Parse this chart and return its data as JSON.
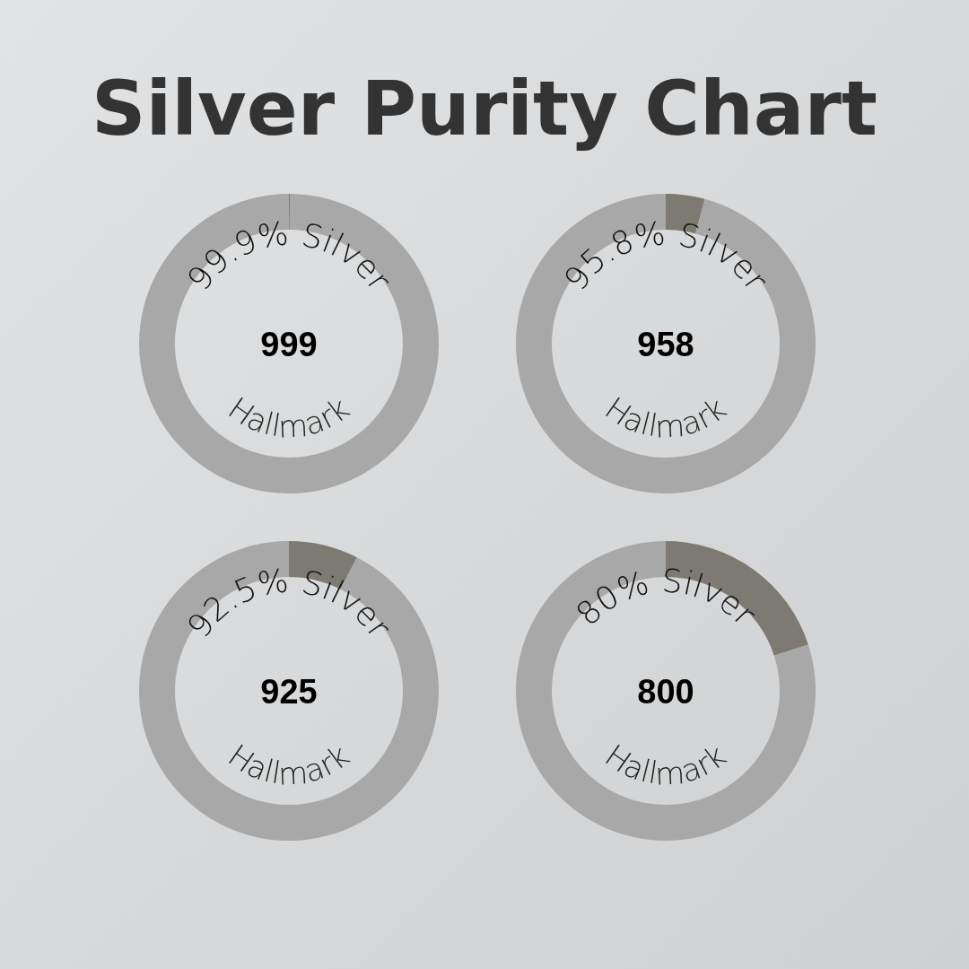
{
  "chart_data": [
    {
      "type": "donut",
      "title": "Silver Purity Chart",
      "categories": [
        null,
        null
      ],
      "values": [
        0.1,
        99.9
      ],
      "colors": [
        "#7d7a72",
        "#a8a8a8"
      ],
      "annotations": [
        "99.9% Silver",
        "999",
        "Hallmark"
      ]
    },
    {
      "type": "donut",
      "categories": [
        null,
        null
      ],
      "values": [
        4.2,
        95.8
      ],
      "colors": [
        "#7d7a72",
        "#a8a8a8"
      ],
      "annotations": [
        "95.8% Silver",
        "958",
        "Hallmark"
      ]
    },
    {
      "type": "donut",
      "categories": [
        null,
        null
      ],
      "values": [
        7.5,
        92.5
      ],
      "colors": [
        "#7d7a72",
        "#a8a8a8"
      ],
      "annotations": [
        "92.5% Silver",
        "925",
        "Hallmark"
      ]
    },
    {
      "type": "donut",
      "categories": [
        null,
        null
      ],
      "values": [
        20,
        80
      ],
      "colors": [
        "#7d7a72",
        "#a8a8a8"
      ],
      "annotations": [
        "80% Silver",
        "800",
        "Hallmark"
      ]
    }
  ]
}
